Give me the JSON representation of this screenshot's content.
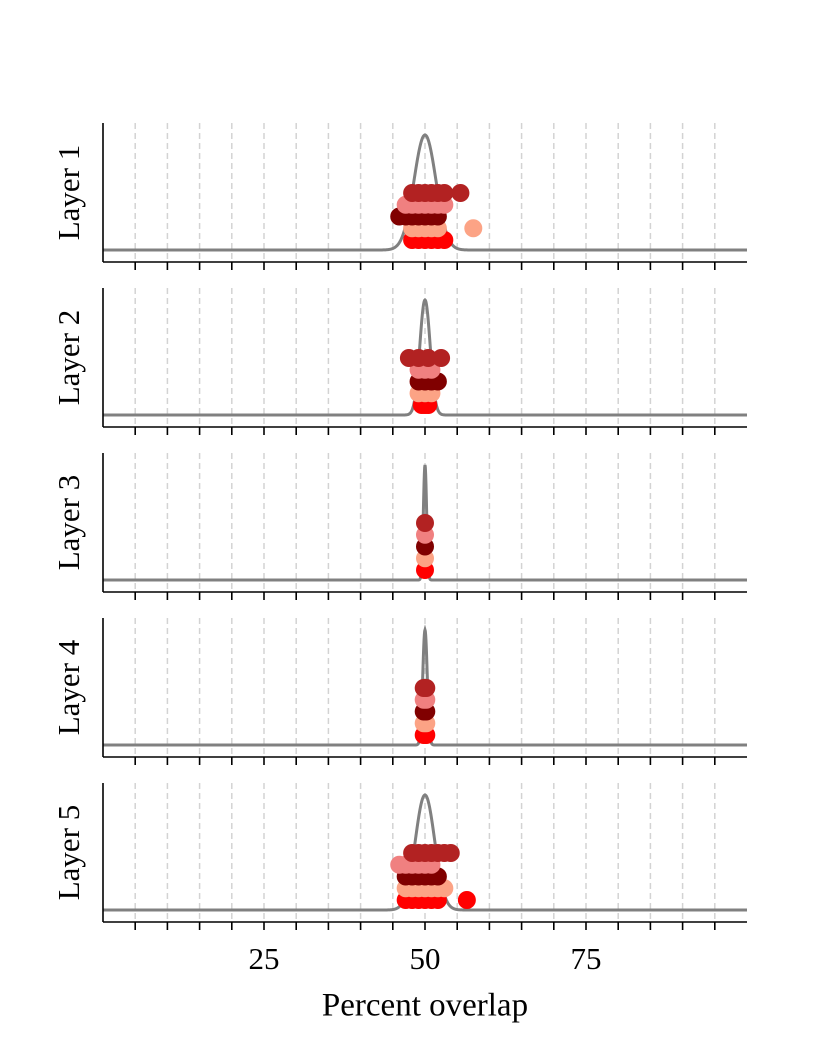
{
  "chart_data": {
    "type": "strip",
    "xlabel": "Percent overlap",
    "xlim": [
      0,
      100
    ],
    "xticks": [
      25,
      50,
      75
    ],
    "xminorticks": [
      5,
      10,
      15,
      20,
      30,
      35,
      40,
      45,
      55,
      60,
      65,
      70,
      80,
      85,
      90,
      95
    ],
    "grid": true,
    "curve_color": "#808080",
    "panels": [
      {
        "ylabel": "Layer 1",
        "curve": {
          "mean": 50,
          "sd": 1.7
        },
        "series": [
          {
            "color": "#ff0000",
            "values": [
              48,
              49,
              50,
              51,
              52,
              53
            ]
          },
          {
            "color": "#fca385",
            "values": [
              48,
              49,
              50,
              51,
              52,
              57.5
            ]
          },
          {
            "color": "#800000",
            "values": [
              46,
              47,
              48,
              49,
              50,
              51,
              52
            ]
          },
          {
            "color": "#f08080",
            "values": [
              47,
              48,
              49,
              50,
              51,
              52,
              53
            ]
          },
          {
            "color": "#b22222",
            "values": [
              48,
              49,
              50,
              51,
              52,
              53,
              55.5
            ]
          }
        ]
      },
      {
        "ylabel": "Layer 2",
        "curve": {
          "mean": 50,
          "sd": 0.8
        },
        "series": [
          {
            "color": "#ff0000",
            "values": [
              49.5,
              50,
              50.5
            ]
          },
          {
            "color": "#fca385",
            "values": [
              49,
              50,
              51
            ]
          },
          {
            "color": "#800000",
            "values": [
              49,
              50,
              51,
              52
            ]
          },
          {
            "color": "#f08080",
            "values": [
              49,
              50,
              51
            ]
          },
          {
            "color": "#b22222",
            "values": [
              47.5,
              49,
              50.5,
              52.5
            ]
          }
        ]
      },
      {
        "ylabel": "Layer 3",
        "curve": {
          "mean": 50,
          "sd": 0.25
        },
        "series": [
          {
            "color": "#ff0000",
            "values": [
              50
            ]
          },
          {
            "color": "#fca385",
            "values": [
              50
            ]
          },
          {
            "color": "#800000",
            "values": [
              50
            ]
          },
          {
            "color": "#f08080",
            "values": [
              50
            ]
          },
          {
            "color": "#b22222",
            "values": [
              50
            ]
          }
        ]
      },
      {
        "ylabel": "Layer 4",
        "curve": {
          "mean": 50,
          "sd": 0.35
        },
        "series": [
          {
            "color": "#ff0000",
            "values": [
              49.8,
              50.2
            ]
          },
          {
            "color": "#fca385",
            "values": [
              49.8,
              50.2
            ]
          },
          {
            "color": "#800000",
            "values": [
              49.8,
              50.2
            ]
          },
          {
            "color": "#f08080",
            "values": [
              49.8,
              50.2
            ]
          },
          {
            "color": "#b22222",
            "values": [
              49.8,
              50.2
            ]
          }
        ]
      },
      {
        "ylabel": "Layer 5",
        "curve": {
          "mean": 50,
          "sd": 1.5
        },
        "series": [
          {
            "color": "#ff0000",
            "values": [
              47,
              48,
              49,
              50,
              51,
              52,
              56.5
            ]
          },
          {
            "color": "#fca385",
            "values": [
              47,
              48,
              49,
              50,
              51,
              52,
              53
            ]
          },
          {
            "color": "#800000",
            "values": [
              47,
              48,
              49,
              50,
              51,
              52
            ]
          },
          {
            "color": "#f08080",
            "values": [
              46,
              47,
              48,
              49,
              50,
              51
            ]
          },
          {
            "color": "#b22222",
            "values": [
              48,
              49,
              50,
              51,
              52,
              53,
              54
            ]
          }
        ]
      }
    ]
  }
}
